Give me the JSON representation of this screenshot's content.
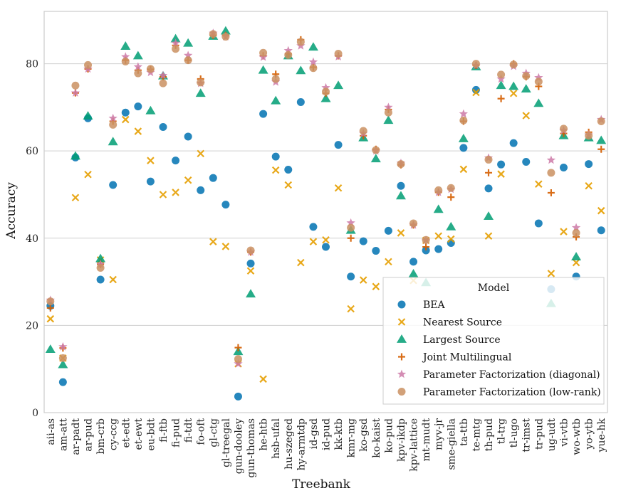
{
  "chart_data": {
    "type": "scatter",
    "xlabel": "Treebank",
    "ylabel": "Accuracy",
    "ylim": [
      0,
      92
    ],
    "yticks": [
      0,
      20,
      40,
      60,
      80
    ],
    "grid": "horizontal",
    "legend_title": "Model",
    "legend_placement": "lower-right",
    "categories": [
      "aii-as",
      "am-att",
      "ar-padt",
      "ar-pud",
      "bm-crb",
      "cy-ccg",
      "et-edt",
      "et-ewt",
      "eu-bdt",
      "fi-ftb",
      "fi-pud",
      "fi-tdt",
      "fo-oft",
      "gl-ctg",
      "gl-treegal",
      "gun-dooley",
      "gun-thomas",
      "he-htb",
      "hsb-ufal",
      "hu-szeged",
      "hy-armtdp",
      "id-gsd",
      "id-pud",
      "kk-ktb",
      "kmr-mg",
      "ko-gsd",
      "ko-kaist",
      "ko-pud",
      "kpv-ikdp",
      "kpv-lattice",
      "mt-mudt",
      "myv-jr",
      "sme-giella",
      "ta-ttb",
      "te-mtg",
      "th-pud",
      "tl-trg",
      "tl-ugo",
      "tr-imst",
      "tr-pud",
      "ug-udt",
      "vi-vtb",
      "wo-wtb",
      "yo-ytb",
      "yue-hk"
    ],
    "series": [
      {
        "name": "BEA",
        "marker": "circle",
        "color": "#0072b2",
        "values": [
          24.5,
          7,
          58.5,
          67.5,
          30.5,
          52.2,
          68.8,
          70.2,
          53,
          65.5,
          57.8,
          63.3,
          51,
          53.8,
          47.7,
          3.7,
          34.2,
          68.5,
          58.7,
          55.7,
          71.2,
          42.6,
          38,
          61.4,
          31.2,
          39.3,
          37.1,
          41.7,
          52,
          34.6,
          37.2,
          37.5,
          38.9,
          60.7,
          74,
          51.4,
          56.9,
          61.8,
          57.5,
          43.4,
          28.3,
          56.2,
          31.2,
          57,
          41.8
        ]
      },
      {
        "name": "Nearest Source",
        "marker": "x",
        "color": "#e69f00",
        "values": [
          21.5,
          12.5,
          49.3,
          54.6,
          35,
          30.5,
          67.2,
          64.5,
          57.8,
          50,
          50.5,
          53.3,
          59.4,
          39.2,
          38.1,
          11.2,
          32.5,
          7.7,
          55.6,
          52.2,
          34.4,
          39.2,
          39.6,
          51.5,
          23.8,
          30.4,
          28.9,
          34.6,
          41.2,
          30.3,
          39.5,
          40.5,
          39.8,
          55.8,
          73.4,
          40.5,
          54.7,
          73.2,
          68.1,
          52.4,
          31.9,
          41.5,
          34.4,
          52,
          46.3
        ]
      },
      {
        "name": "Largest Source",
        "marker": "triangle",
        "color": "#009e73",
        "values": [
          14.5,
          11,
          58.8,
          68,
          35.3,
          62.1,
          84,
          81.8,
          69.2,
          77.2,
          85.7,
          84.7,
          73.2,
          86.3,
          87.5,
          14,
          27.2,
          78.5,
          71.5,
          81.8,
          78.4,
          83.8,
          72,
          75,
          41.8,
          63,
          58.2,
          67,
          49.7,
          31.8,
          29.8,
          46.6,
          42.6,
          62.8,
          79.3,
          45,
          75,
          74.8,
          74.2,
          70.9,
          25,
          63.5,
          35.7,
          63,
          62.4
        ]
      },
      {
        "name": "Joint Multilingual",
        "marker": "plus",
        "color": "#d55e00",
        "values": [
          24,
          14.8,
          73.3,
          78.8,
          34,
          66.8,
          80.8,
          78.5,
          78.7,
          77,
          84.2,
          80.8,
          76.5,
          86.5,
          86.5,
          14.9,
          36.8,
          81.8,
          77.6,
          82.3,
          85.5,
          79.2,
          73.2,
          81.8,
          40,
          63.5,
          60.4,
          69.5,
          56.8,
          43,
          38,
          50.5,
          49.4,
          66.8,
          79.6,
          55,
          72,
          80,
          77,
          74.8,
          50.4,
          64,
          40.3,
          64.3,
          60.4
        ]
      },
      {
        "name": "Parameter Factorization (diagonal)",
        "marker": "star",
        "color": "#cc79a7",
        "values": [
          25.8,
          15.1,
          73.3,
          78.8,
          34,
          67.5,
          81.6,
          79.3,
          78,
          77.3,
          84.7,
          81.9,
          75.5,
          87,
          86.2,
          11.2,
          36.8,
          81.5,
          75.8,
          83,
          84.1,
          80.4,
          74.5,
          81.6,
          43.5,
          64,
          60,
          70,
          57.2,
          43,
          39.5,
          50.5,
          51.2,
          68.5,
          79.6,
          58.4,
          76.5,
          79.4,
          77.8,
          76.8,
          57.9,
          64.7,
          42.4,
          63.7,
          67.2
        ]
      },
      {
        "name": "Parameter Factorization (low-rank)",
        "marker": "circle",
        "color": "#ca9161",
        "values": [
          25.5,
          12.5,
          75,
          79.7,
          33.2,
          66,
          80.5,
          77.8,
          78.8,
          75.5,
          83.4,
          80.8,
          75.7,
          86.8,
          86.2,
          12.3,
          37.2,
          82.5,
          76.5,
          82,
          85,
          79,
          73.6,
          82.3,
          42.4,
          64.6,
          60.2,
          68.8,
          57,
          43.4,
          39.6,
          51,
          51.5,
          67,
          80,
          58,
          77.5,
          79.8,
          77.2,
          75.9,
          55,
          65.1,
          41.2,
          63.5,
          66.8
        ]
      }
    ]
  }
}
